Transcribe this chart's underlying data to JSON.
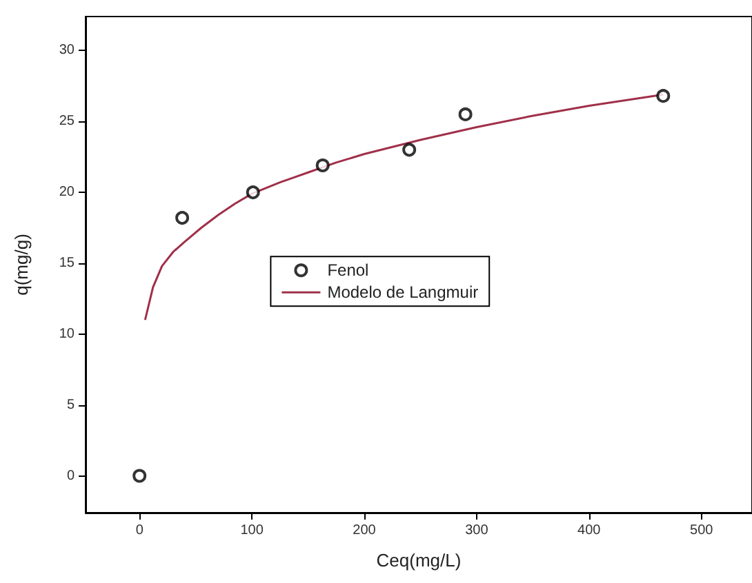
{
  "chart_data": {
    "type": "scatter",
    "xlabel": "Ceq(mg/L)",
    "ylabel": "q(mg/g)",
    "xlim": [
      -48,
      545
    ],
    "ylim": [
      -2.6,
      32.4
    ],
    "xticks": [
      0,
      100,
      200,
      300,
      400,
      500
    ],
    "yticks": [
      0,
      5,
      10,
      15,
      20,
      25,
      30
    ],
    "grid": false,
    "legend": "center",
    "marker": "circle",
    "series": [
      {
        "name": "Fenol",
        "color": "#000000",
        "x": [
          0,
          38,
          101,
          163,
          240,
          290,
          466
        ],
        "values": [
          0,
          18.2,
          20,
          21.9,
          23,
          25.5,
          26.8
        ]
      },
      {
        "name": "Modelo de Langmuir",
        "type": "line",
        "color": "#a0304a",
        "marker": "none",
        "x": [
          5,
          12,
          20,
          30,
          40,
          55,
          70,
          85,
          100,
          125,
          150,
          175,
          200,
          250,
          300,
          350,
          400,
          466
        ],
        "values": [
          11,
          13.3,
          14.8,
          15.8,
          16.5,
          17.5,
          18.4,
          19.2,
          19.9,
          20.7,
          21.4,
          22.1,
          22.7,
          23.7,
          24.6,
          25.4,
          26.1,
          26.9
        ]
      }
    ]
  }
}
